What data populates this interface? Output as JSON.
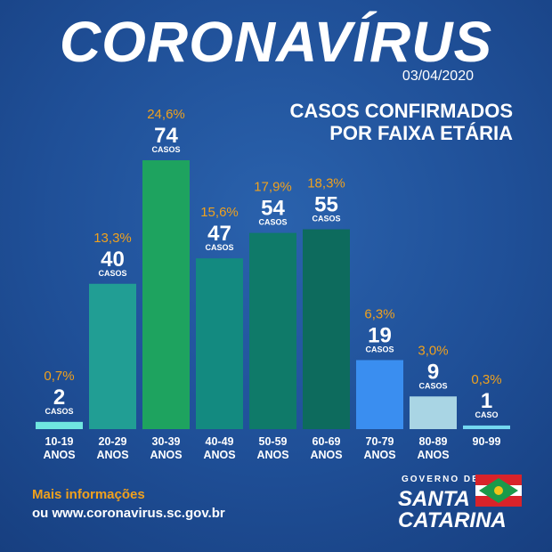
{
  "header": {
    "title": "CORONAVÍRUS",
    "date": "03/04/2020",
    "subtitle_line1": "CASOS CONFIRMADOS",
    "subtitle_line2": "POR FAIXA ETÁRIA"
  },
  "chart_data": {
    "type": "bar",
    "title": "CASOS CONFIRMADOS POR FAIXA ETÁRIA",
    "xlabel": "",
    "ylabel": "",
    "ylim": [
      0,
      74
    ],
    "grid": false,
    "categories": [
      "10-19 ANOS",
      "20-29 ANOS",
      "30-39 ANOS",
      "40-49 ANOS",
      "50-59 ANOS",
      "60-69 ANOS",
      "70-79 ANOS",
      "80-89 ANOS",
      "90-99"
    ],
    "category_lines": [
      [
        "10-19",
        "ANOS"
      ],
      [
        "20-29",
        "ANOS"
      ],
      [
        "30-39",
        "ANOS"
      ],
      [
        "40-49",
        "ANOS"
      ],
      [
        "50-59",
        "ANOS"
      ],
      [
        "60-69",
        "ANOS"
      ],
      [
        "70-79",
        "ANOS"
      ],
      [
        "80-89",
        "ANOS"
      ],
      [
        "90-99",
        ""
      ]
    ],
    "values": [
      2,
      40,
      74,
      47,
      54,
      55,
      19,
      9,
      1
    ],
    "percentages": [
      "0,7%",
      "13,3%",
      "24,6%",
      "15,6%",
      "17,9%",
      "18,3%",
      "6,3%",
      "3,0%",
      "0,3%"
    ],
    "unit_labels": [
      "CASOS",
      "CASOS",
      "CASOS",
      "CASOS",
      "CASOS",
      "CASOS",
      "CASOS",
      "CASOS",
      "CASO"
    ],
    "colors": [
      "#6fe6e0",
      "#219e94",
      "#1ea35f",
      "#138a80",
      "#0f7a69",
      "#0d6b5d",
      "#3a8ef0",
      "#a9d5e4",
      "#74d8ef"
    ],
    "percent_color": "#f0a11d"
  },
  "footer": {
    "info_label": "Mais informações",
    "info_url": "ou www.coronavirus.sc.gov.br"
  },
  "logo": {
    "line1": "GOVERNO DE",
    "line2": "SANTA",
    "line3": "CATARINA"
  }
}
